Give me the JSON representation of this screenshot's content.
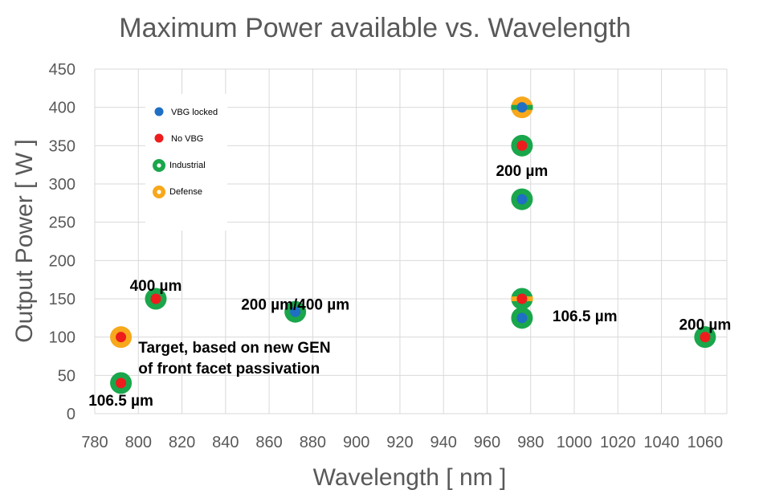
{
  "chart_data": {
    "type": "scatter",
    "title": "Maximum Power available vs. Wavelength",
    "xlabel": "Wavelength [ nm ]",
    "ylabel": "Output Power [ W ]",
    "xlim": [
      780,
      1070
    ],
    "ylim": [
      0,
      450
    ],
    "xticks": [
      780,
      800,
      820,
      840,
      860,
      880,
      900,
      920,
      940,
      960,
      980,
      1000,
      1020,
      1040,
      1060
    ],
    "yticks": [
      0,
      50,
      100,
      150,
      200,
      250,
      300,
      350,
      400,
      450
    ],
    "grid": true,
    "legend_position": "top-left",
    "colors": {
      "vbg_locked": "#1f6fc4",
      "no_vbg": "#ee1c1c",
      "industrial": "#1aa64b",
      "defense": "#f7a81b"
    },
    "legend": [
      {
        "key": "vbg_locked",
        "label": "VBG locked"
      },
      {
        "key": "no_vbg",
        "label": "No VBG"
      },
      {
        "key": "industrial",
        "label": "Industrial"
      },
      {
        "key": "defense",
        "label": "Defense"
      }
    ],
    "points": [
      {
        "x": 792,
        "y": 100,
        "inner": "no_vbg",
        "outer": "defense"
      },
      {
        "x": 792,
        "y": 40,
        "inner": "no_vbg",
        "outer": "industrial"
      },
      {
        "x": 808,
        "y": 150,
        "inner": "no_vbg",
        "outer": "industrial"
      },
      {
        "x": 872,
        "y": 133,
        "inner": "vbg_locked",
        "outer": "industrial"
      },
      {
        "x": 976,
        "y": 400,
        "inner": "vbg_locked",
        "outer": "defense",
        "band": "industrial"
      },
      {
        "x": 976,
        "y": 350,
        "inner": "no_vbg",
        "outer": "industrial"
      },
      {
        "x": 976,
        "y": 280,
        "inner": "vbg_locked",
        "outer": "industrial"
      },
      {
        "x": 976,
        "y": 150,
        "inner": "no_vbg",
        "outer": "industrial",
        "band": "defense"
      },
      {
        "x": 976,
        "y": 125,
        "inner": "vbg_locked",
        "outer": "industrial"
      },
      {
        "x": 1060,
        "y": 100,
        "inner": "no_vbg",
        "outer": "industrial"
      }
    ],
    "annotations": [
      {
        "text": "400 µm",
        "x": 808,
        "y": 168
      },
      {
        "text": "200 µm/400 µm",
        "x": 872,
        "y": 143
      },
      {
        "text": "200 µm",
        "x": 976,
        "y": 318
      },
      {
        "text": "106.5 µm",
        "x": 990,
        "y": 128
      },
      {
        "text": "200 µm",
        "x": 1060,
        "y": 117
      },
      {
        "text": "106.5 µm",
        "x": 792,
        "y": 18
      },
      {
        "text": "Target, based on new GEN",
        "x": 800,
        "y": 87
      },
      {
        "text": "of front facet passivation",
        "x": 800,
        "y": 60
      }
    ]
  }
}
